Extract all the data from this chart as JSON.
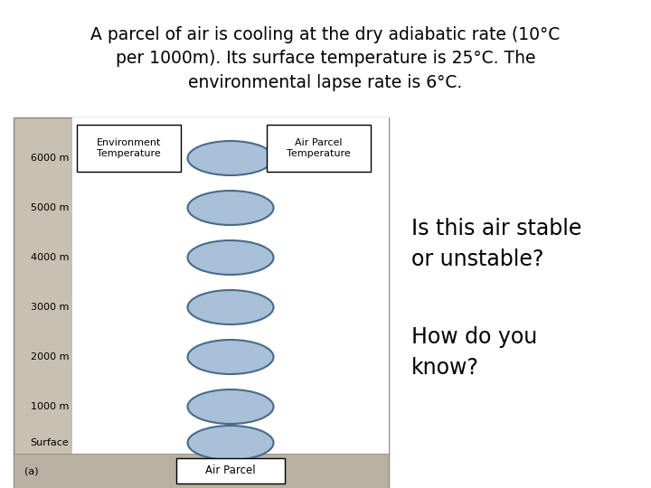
{
  "title_line1": "A parcel of air is cooling at the dry adiabatic rate (10°C",
  "title_line2": "per 1000m). Its surface temperature is 25°C. The",
  "title_line3": "environmental lapse rate is 6°C.",
  "question1": "Is this air stable\nor unstable?",
  "question2": "How do you\nknow?",
  "altitudes": [
    "6000 m",
    "5000 m",
    "4000 m",
    "3000 m",
    "2000 m",
    "1000 m",
    "Surface"
  ],
  "ellipse_fill": "#a8c0d8",
  "ellipse_edge": "#4a6a8a",
  "panel_bg": "#c8c0b0",
  "panel_inner_bg": "#ffffff",
  "footer_bg": "#b8b0a0",
  "env_label": "Environment\nTemperature",
  "parcel_label": "Air Parcel\nTemperature",
  "bottom_label": "Air Parcel",
  "bottom_note": "(a)"
}
